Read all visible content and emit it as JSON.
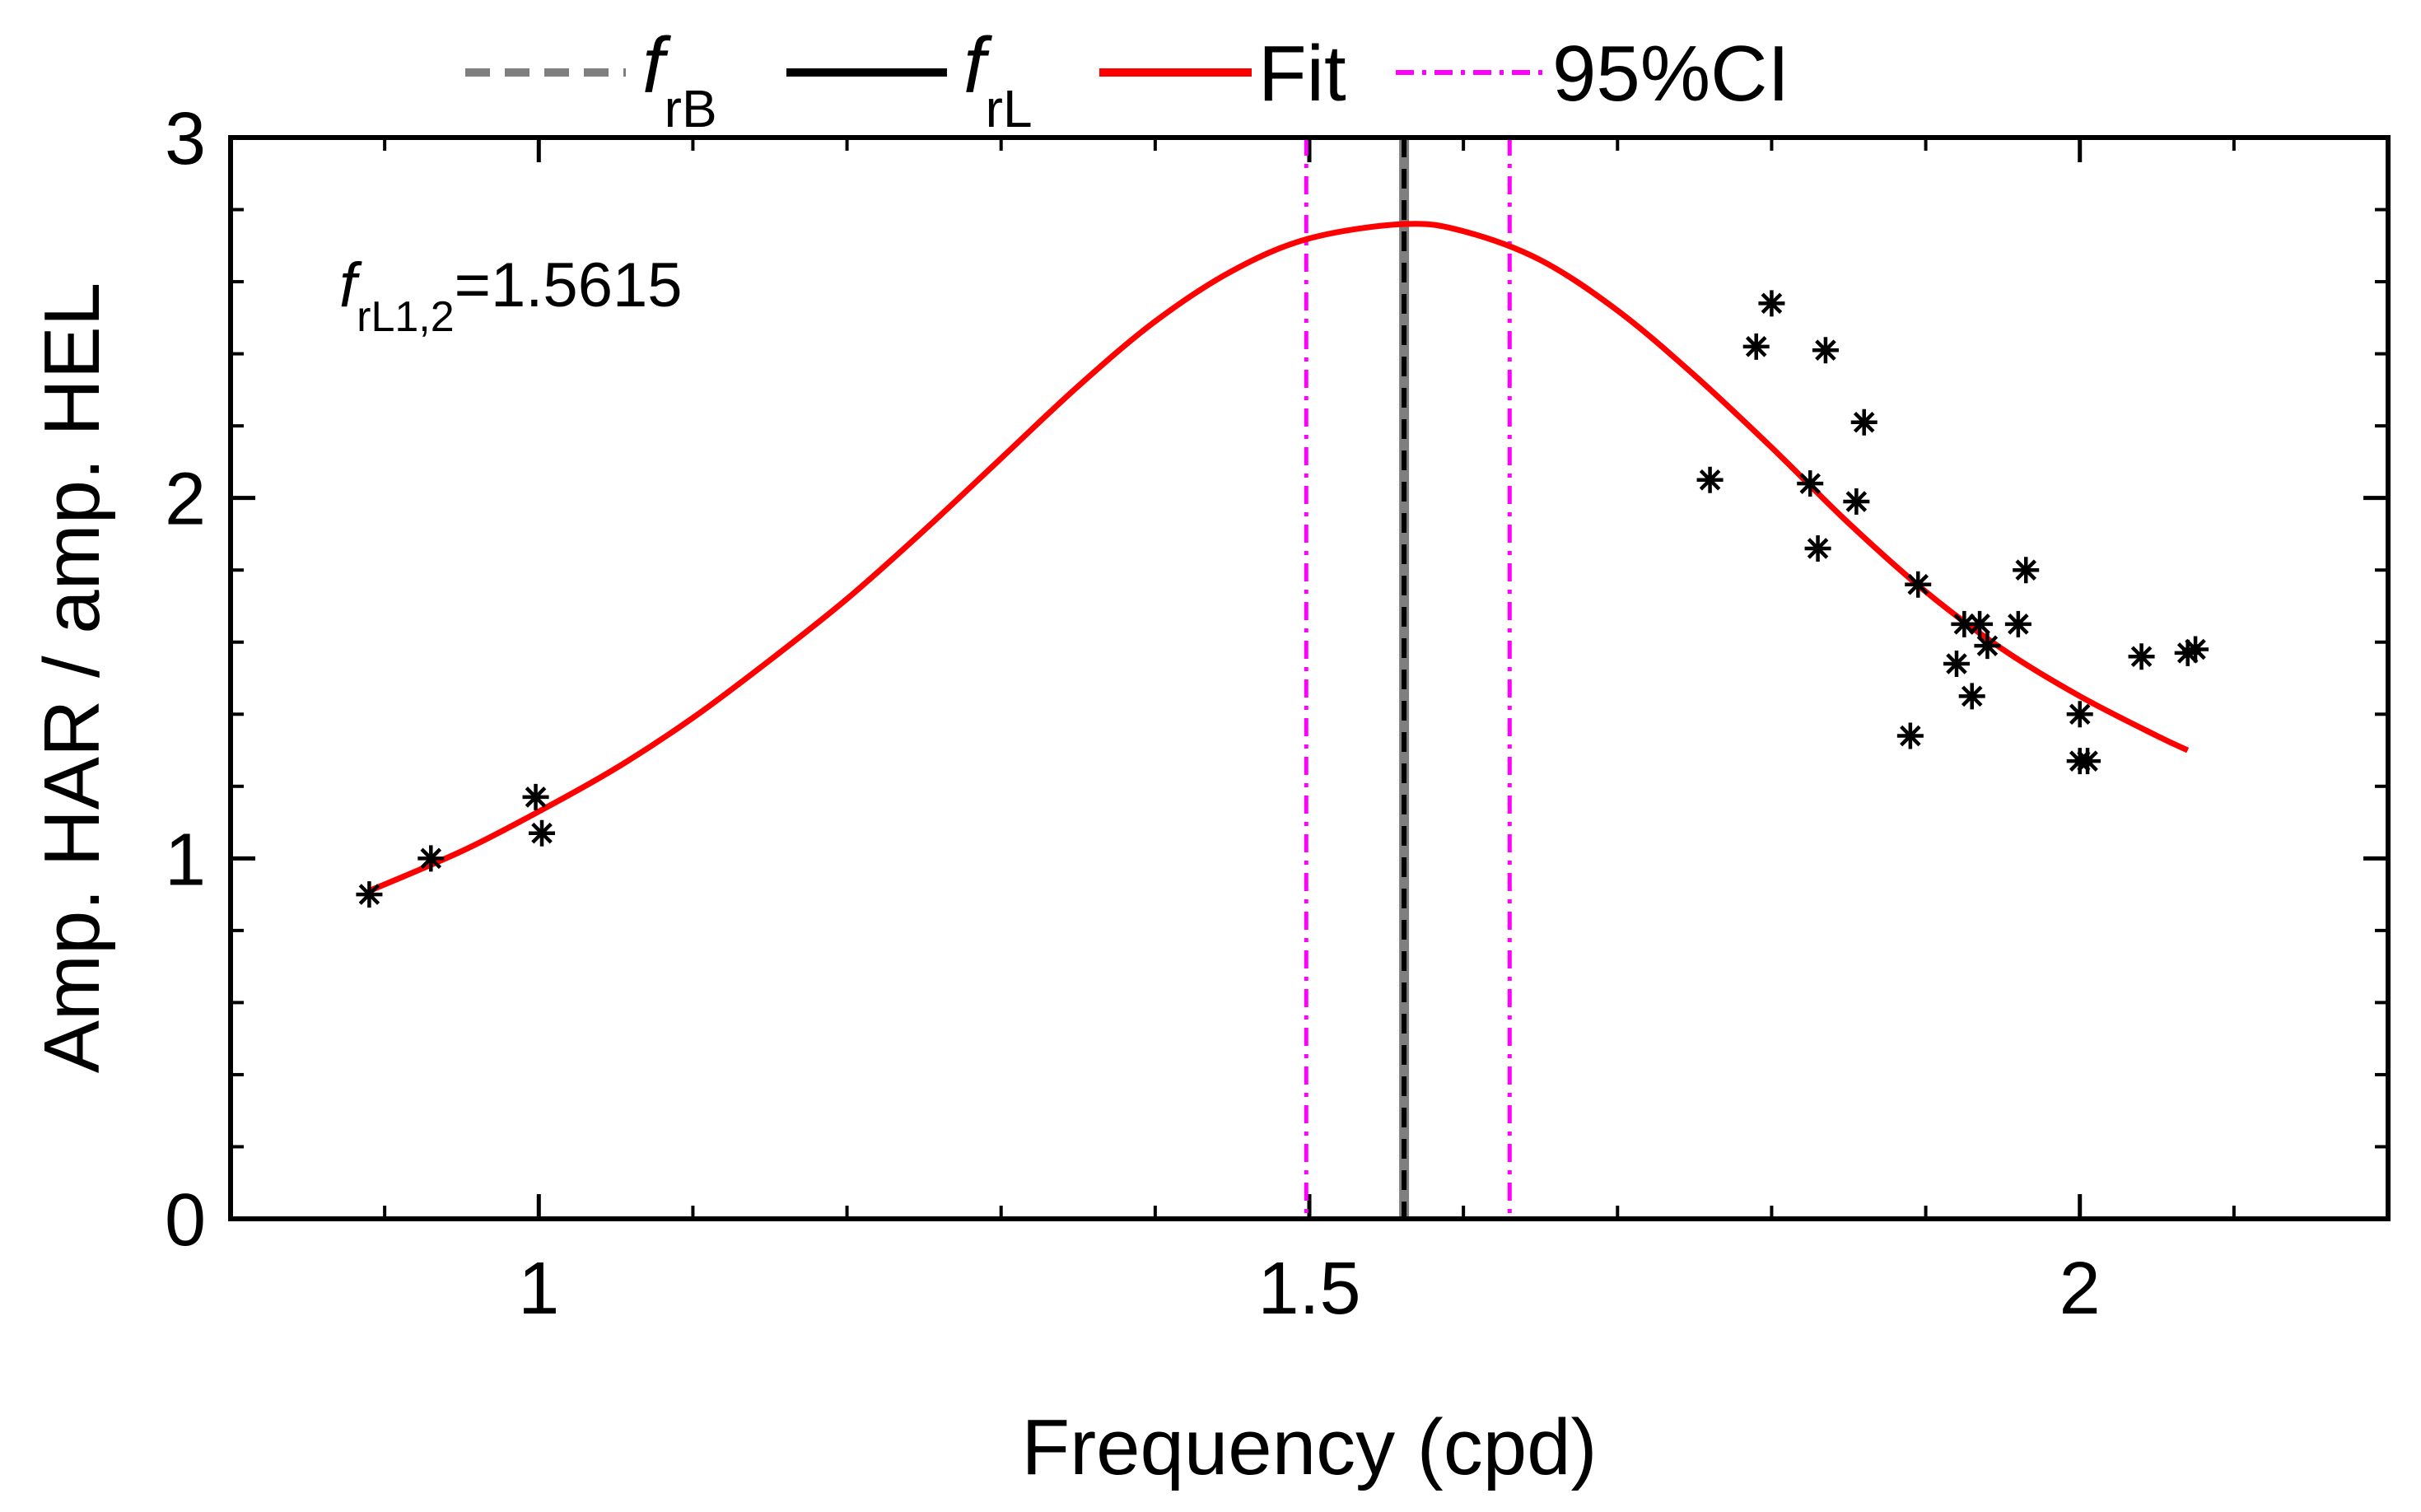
{
  "chart_data": {
    "type": "line",
    "title": "",
    "xlabel": "Frequency (cpd)",
    "ylabel": "Amp. HAR / amp. HEL",
    "xlim": [
      0.8,
      2.2
    ],
    "ylim": [
      0,
      3
    ],
    "xticks": [
      1,
      1.5,
      2
    ],
    "xtick_labels": [
      "1",
      "1.5",
      "2"
    ],
    "xminor": [
      0.9,
      1.1,
      1.2,
      1.3,
      1.4,
      1.6,
      1.7,
      1.8,
      1.9,
      2.1
    ],
    "yticks": [
      0,
      1,
      2,
      3
    ],
    "ytick_labels": [
      "0",
      "1",
      "2",
      "3"
    ],
    "yminor": [
      0.2,
      0.4,
      0.6,
      0.8,
      1.2,
      1.4,
      1.6,
      1.8,
      2.2,
      2.4,
      2.6,
      2.8
    ],
    "grid": false,
    "legend_position": "top",
    "legend": [
      {
        "symbol": "f",
        "sub": "rB",
        "style": "dashed",
        "color": "#7f7f7f"
      },
      {
        "symbol": "f",
        "sub": "rL",
        "style": "solid",
        "color": "#000000"
      },
      {
        "label": "Fit",
        "style": "solid",
        "color": "#ff0000"
      },
      {
        "label": "95%CI",
        "style": "dashdot",
        "color": "#ff00ff"
      }
    ],
    "annotation": {
      "symbol": "f",
      "sub": "rL1,2",
      "text": "=1.5615"
    },
    "vlines": [
      {
        "name": "frB",
        "x": 1.5615,
        "color": "#7f7f7f",
        "style": "solid"
      },
      {
        "name": "frL",
        "x": 1.5615,
        "color": "#000000",
        "style": "dashed"
      },
      {
        "name": "ci-lower",
        "x": 1.498,
        "color": "#ff00ff",
        "style": "dashdot"
      },
      {
        "name": "ci-upper",
        "x": 1.63,
        "color": "#ff00ff",
        "style": "dashdot"
      }
    ],
    "fit": {
      "name": "Fit",
      "color": "#ff0000",
      "x": [
        0.89,
        0.95,
        1.0,
        1.05,
        1.1,
        1.15,
        1.2,
        1.25,
        1.3,
        1.35,
        1.4,
        1.45,
        1.5,
        1.5615,
        1.6,
        1.65,
        1.7,
        1.75,
        1.8,
        1.85,
        1.9,
        1.95,
        2.0,
        2.05,
        2.07
      ],
      "y": [
        0.91,
        1.02,
        1.13,
        1.25,
        1.39,
        1.55,
        1.72,
        1.91,
        2.11,
        2.31,
        2.49,
        2.63,
        2.72,
        2.76,
        2.74,
        2.66,
        2.52,
        2.34,
        2.14,
        1.93,
        1.74,
        1.58,
        1.45,
        1.34,
        1.3
      ]
    },
    "points": {
      "marker": "*",
      "color": "#000000",
      "x": [
        0.89,
        0.93,
        0.998,
        1.002,
        1.76,
        1.79,
        1.8,
        1.825,
        1.83,
        1.835,
        1.855,
        1.86,
        1.89,
        1.895,
        1.92,
        1.925,
        1.93,
        1.935,
        1.94,
        1.96,
        1.965,
        2.0,
        2.0,
        2.005,
        2.04,
        2.07,
        2.075
      ],
      "y": [
        0.9,
        1.0,
        1.17,
        1.07,
        2.05,
        2.42,
        2.54,
        2.04,
        1.86,
        2.41,
        1.99,
        2.21,
        1.34,
        1.76,
        1.54,
        1.65,
        1.45,
        1.65,
        1.59,
        1.65,
        1.8,
        1.4,
        1.27,
        1.27,
        1.56,
        1.57,
        1.58
      ]
    }
  }
}
